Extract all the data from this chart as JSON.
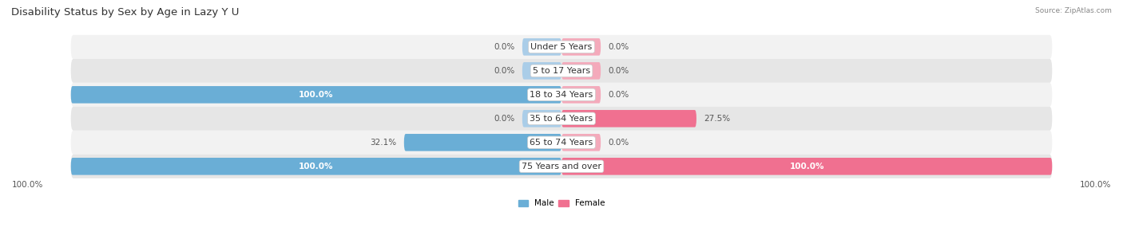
{
  "title": "Disability Status by Sex by Age in Lazy Y U",
  "source": "Source: ZipAtlas.com",
  "categories": [
    "Under 5 Years",
    "5 to 17 Years",
    "18 to 34 Years",
    "35 to 64 Years",
    "65 to 74 Years",
    "75 Years and over"
  ],
  "male_values": [
    0.0,
    0.0,
    100.0,
    0.0,
    32.1,
    100.0
  ],
  "female_values": [
    0.0,
    0.0,
    0.0,
    27.5,
    0.0,
    100.0
  ],
  "male_color": "#6aaed6",
  "male_color_light": "#aacde8",
  "female_color": "#f07090",
  "female_color_light": "#f4aabb",
  "row_bg_light": "#f2f2f2",
  "row_bg_dark": "#e6e6e6",
  "max_value": 100.0,
  "stub_value": 8.0,
  "bar_height": 0.72,
  "figsize": [
    14.06,
    3.05
  ],
  "dpi": 100,
  "title_fontsize": 9.5,
  "label_fontsize": 7.5,
  "category_fontsize": 8,
  "axis_label_fontsize": 7.5
}
